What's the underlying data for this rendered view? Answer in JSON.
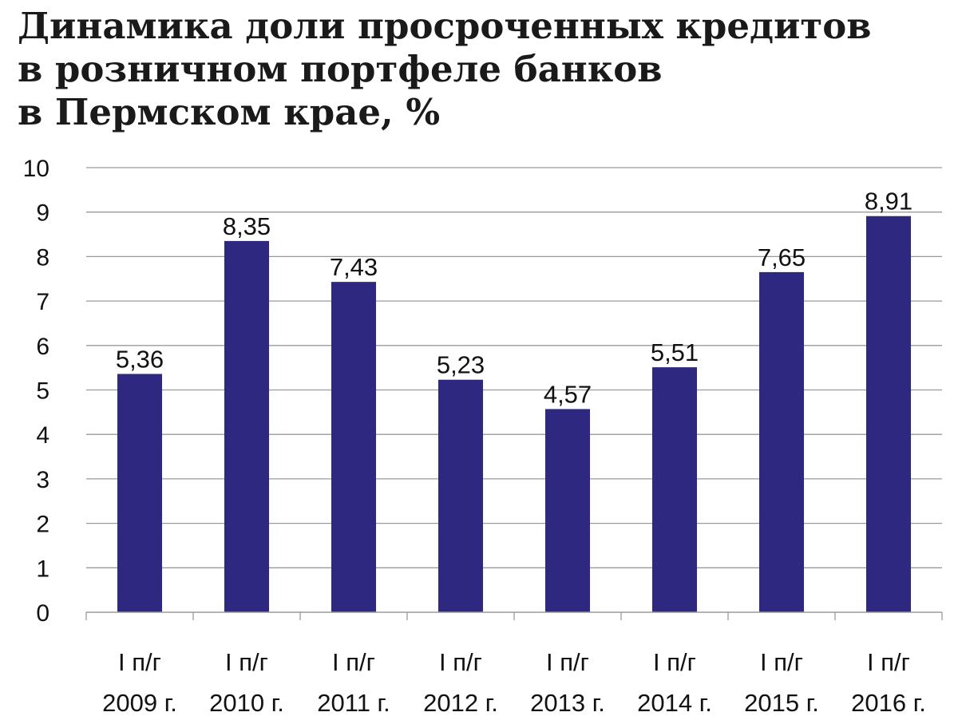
{
  "chart_data": {
    "type": "bar",
    "title": [
      "Динамика доли просроченных кредитов",
      "в розничном портфеле банков",
      "в Пермском крае, %"
    ],
    "categories": [
      [
        "I п/г",
        "2009 г."
      ],
      [
        "I п/г",
        "2010 г."
      ],
      [
        "I п/г",
        "2011 г."
      ],
      [
        "I п/г",
        "2012 г."
      ],
      [
        "I п/г",
        "2013 г."
      ],
      [
        "I п/г",
        "2014 г."
      ],
      [
        "I п/г",
        "2015 г."
      ],
      [
        "I п/г",
        "2016 г."
      ]
    ],
    "values": [
      5.36,
      8.35,
      7.43,
      5.23,
      4.57,
      5.51,
      7.65,
      8.91
    ],
    "value_labels": [
      "5,36",
      "8,35",
      "7,43",
      "5,23",
      "4,57",
      "5,51",
      "7,65",
      "8,91"
    ],
    "ylim": [
      0,
      10
    ],
    "yticks": [
      0,
      1,
      2,
      3,
      4,
      5,
      6,
      7,
      8,
      9,
      10
    ],
    "xlabel": "",
    "ylabel": "",
    "grid": true,
    "legend": "none",
    "bar_color": "#2e2880",
    "grid_color": "#9a9a9a"
  }
}
